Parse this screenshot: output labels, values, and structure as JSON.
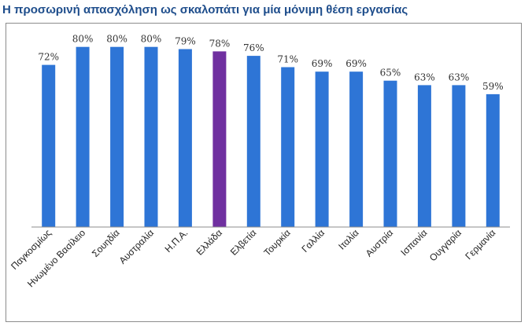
{
  "title": "Η προσωρινή απασχόληση ως σκαλοπάτι για μία μόνιμη θέση εργασίας",
  "chart_data": {
    "type": "bar",
    "title": "Η προσωρινή απασχόληση ως σκαλοπάτι για μία μόνιμη θέση εργασίας",
    "xlabel": "",
    "ylabel": "",
    "ylim": [
      0,
      90
    ],
    "grid": false,
    "legend": "none",
    "categories": [
      "Παγκοσμίως",
      "Ηνωμένο Βασίλειο",
      "Σουηδία",
      "Αυστραλία",
      "Η.Π.Α.",
      "Ελλάδα",
      "Ελβετία",
      "Τουρκία",
      "Γαλλία",
      "Ιταλία",
      "Αυστρία",
      "Ισπανία",
      "Ουγγαρία",
      "Γερμανία"
    ],
    "values": [
      72,
      80,
      80,
      80,
      79,
      78,
      76,
      71,
      69,
      69,
      65,
      63,
      63,
      59
    ],
    "value_labels": [
      "72%",
      "80%",
      "80%",
      "80%",
      "79%",
      "78%",
      "76%",
      "71%",
      "69%",
      "69%",
      "65%",
      "63%",
      "63%",
      "59%"
    ],
    "colors": {
      "default": "#2e75d6",
      "highlight": "#7030a0",
      "highlight_category": "Ελλάδα",
      "axis": "#8c8c8c",
      "title": "#1f4e8c"
    }
  }
}
